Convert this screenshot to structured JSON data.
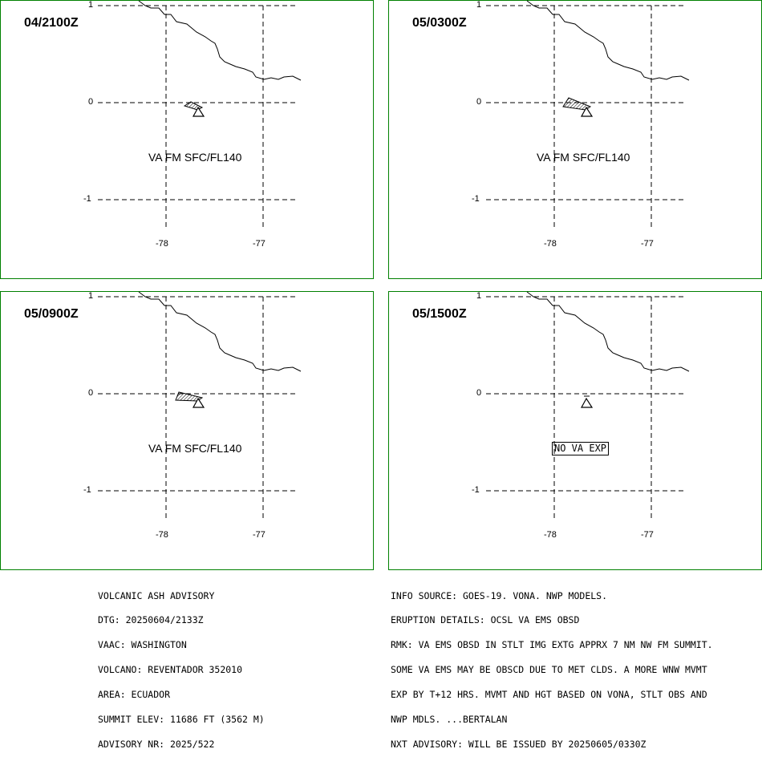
{
  "colors": {
    "frame": "#008000",
    "lines": "#000000",
    "background": "#ffffff"
  },
  "panels": [
    {
      "time": "04/2100Z",
      "label": "VA FM SFC/FL140",
      "label_style": "plain",
      "ash": "small"
    },
    {
      "time": "05/0300Z",
      "label": "VA FM SFC/FL140",
      "label_style": "plain",
      "ash": "medium"
    },
    {
      "time": "05/0900Z",
      "label": "VA FM SFC/FL140",
      "label_style": "plain",
      "ash": "medium"
    },
    {
      "time": "05/1500Z",
      "label": "NO VA EXP",
      "label_style": "boxed",
      "ash": "none"
    }
  ],
  "axes": {
    "lat_ticks": [
      "1",
      "0",
      "-1"
    ],
    "lon_ticks": [
      "-78",
      "-77"
    ]
  },
  "map_symbols": [
    "volcano-triangle-icon",
    "coastline-line",
    "ash-cloud-polygon"
  ],
  "advisory_left": [
    "VOLCANIC ASH ADVISORY",
    "DTG: 20250604/2133Z",
    "VAAC: WASHINGTON",
    "VOLCANO: REVENTADOR 352010",
    "AREA: ECUADOR",
    "SUMMIT ELEV: 11686 FT (3562 M)",
    "ADVISORY NR: 2025/522"
  ],
  "advisory_right": [
    "INFO SOURCE: GOES-19. VONA. NWP MODELS.",
    "ERUPTION DETAILS: OCSL VA EMS OBSD",
    "RMK: VA EMS OBSD IN STLT IMG EXTG APPRX 7 NM NW FM SUMMIT.",
    "SOME VA EMS MAY BE OBSCD DUE TO MET CLDS. A MORE WNW MVMT",
    "EXP BY T+12 HRS. MVMT AND HGT BASED ON VONA, STLT OBS AND",
    "NWP MDLS. ...BERTALAN",
    "NXT ADVISORY: WILL BE ISSUED BY 20250605/0330Z"
  ]
}
